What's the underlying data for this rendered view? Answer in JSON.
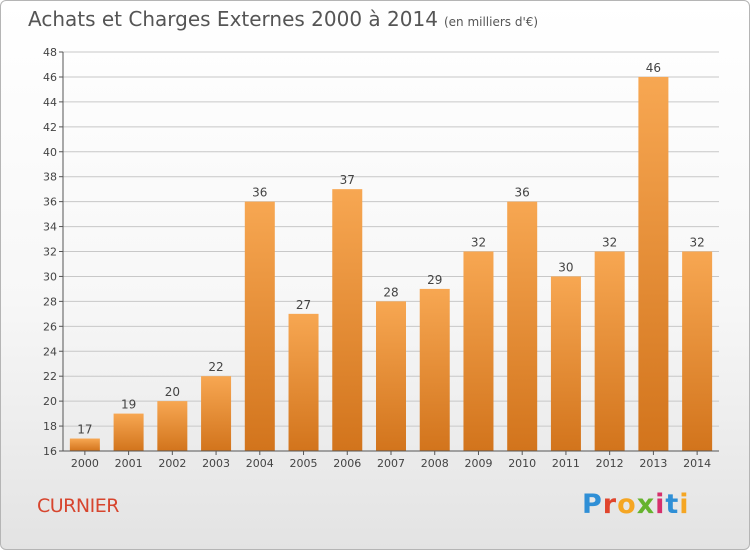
{
  "title": "Achats et Charges Externes 2000 à 2014",
  "subtitle": "(en milliers d'€)",
  "commune": "CURNIER",
  "brand": {
    "letters": [
      "P",
      "r",
      "o",
      "x",
      "i",
      "t",
      "i"
    ],
    "colors": [
      "#2f8fd6",
      "#e0452d",
      "#f5a623",
      "#66b32e",
      "#d62f6c",
      "#2f8fd6",
      "#f5a623"
    ]
  },
  "colors": {
    "bar_top": "#f7a752",
    "bar_bottom": "#d2741c",
    "grid": "#c8c8c8"
  },
  "chart_data": {
    "type": "bar",
    "categories": [
      "2000",
      "2001",
      "2002",
      "2003",
      "2004",
      "2005",
      "2006",
      "2007",
      "2008",
      "2009",
      "2010",
      "2011",
      "2012",
      "2013",
      "2014"
    ],
    "values": [
      17,
      19,
      20,
      22,
      36,
      27,
      37,
      28,
      29,
      32,
      36,
      30,
      32,
      46,
      32
    ],
    "ylim": [
      16,
      48
    ],
    "yticks": [
      16,
      18,
      20,
      22,
      24,
      26,
      28,
      30,
      32,
      34,
      36,
      38,
      40,
      42,
      44,
      46,
      48
    ],
    "grid": true,
    "xlabel": "",
    "ylabel": ""
  }
}
